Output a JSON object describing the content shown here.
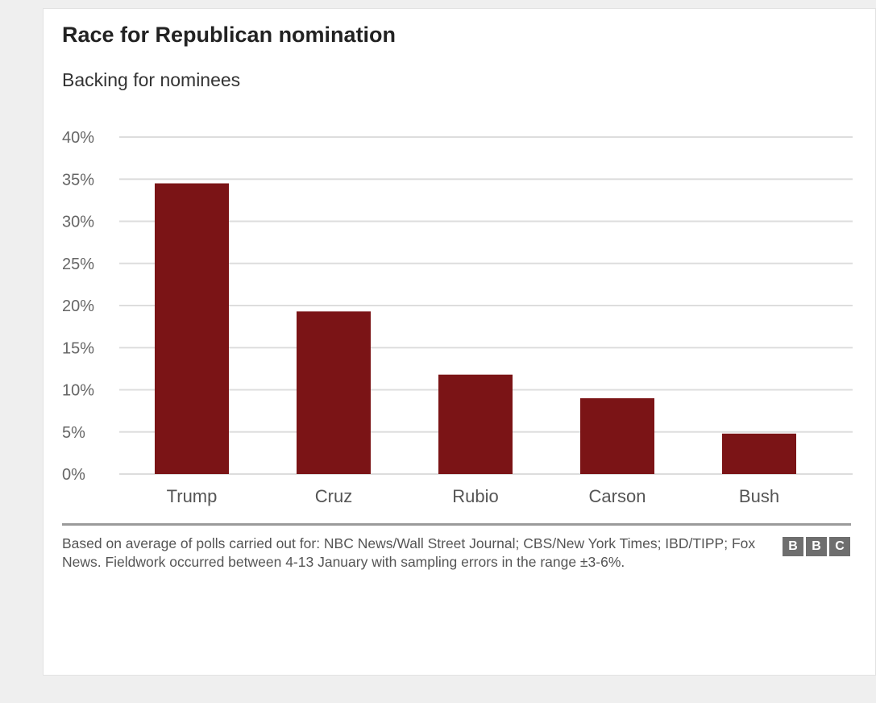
{
  "chart_data": {
    "type": "bar",
    "title": "Race for Republican nomination",
    "subtitle": "Backing for nominees",
    "categories": [
      "Trump",
      "Cruz",
      "Rubio",
      "Carson",
      "Bush"
    ],
    "values": [
      34.5,
      19.3,
      11.8,
      9.0,
      4.8
    ],
    "ylim": [
      0,
      40
    ],
    "yticks": [
      0,
      5,
      10,
      15,
      20,
      25,
      30,
      35,
      40
    ],
    "ytick_labels": [
      "0%",
      "5%",
      "10%",
      "15%",
      "20%",
      "25%",
      "30%",
      "35%",
      "40%"
    ],
    "xlabel": "",
    "ylabel": "",
    "grid": true,
    "bar_color": "#7b1416"
  },
  "footnote": "Based on average of polls carried out for: NBC News/Wall Street Journal; CBS/New York Times; IBD/TIPP; Fox News. Fieldwork occurred between 4-13 January with sampling errors in the range ±3-6%.",
  "logo": {
    "letters": [
      "B",
      "B",
      "C"
    ]
  }
}
